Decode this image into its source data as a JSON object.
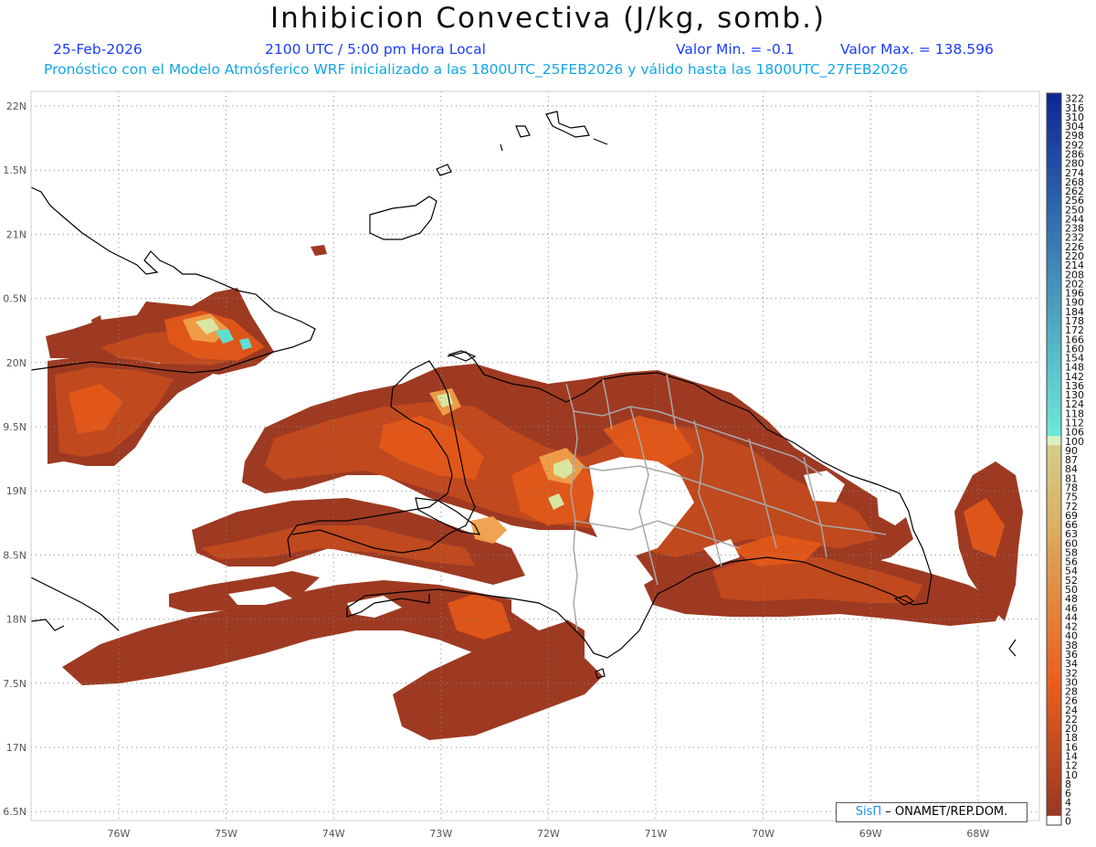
{
  "header": {
    "title": "Inhibicion Convectiva (J/kg, somb.)",
    "date": "25-Feb-2026",
    "time": "2100 UTC / 5:00 pm Hora Local",
    "min_label": "Valor Min. = -0.1",
    "max_label": "Valor Max. = 138.596",
    "forecast_note": "Pronóstico con el Modelo Atmósferico WRF inicializado a las 1800UTC_25FEB2026 y válido hasta las  1800UTC_27FEB2026"
  },
  "map": {
    "lat_labels": [
      "22N",
      "1.5N",
      "21N",
      "0.5N",
      "20N",
      "9.5N",
      "19N",
      "8.5N",
      "18N",
      "7.5N",
      "17N",
      "6.5N"
    ],
    "lon_labels": [
      "76W",
      "75W",
      "74W",
      "73W",
      "72W",
      "71W",
      "70W",
      "69W",
      "68W"
    ],
    "field_colors": {
      "dark": "#9e3a22",
      "mid": "#c24a1e",
      "orange": "#e4591a",
      "light": "#f0a04a",
      "pale": "#d8e6a0",
      "cyan": "#5fe0d0"
    }
  },
  "colorbar": {
    "labels": [
      "322",
      "316",
      "310",
      "304",
      "298",
      "292",
      "286",
      "280",
      "274",
      "268",
      "262",
      "256",
      "250",
      "244",
      "238",
      "232",
      "226",
      "220",
      "214",
      "208",
      "202",
      "196",
      "190",
      "184",
      "178",
      "172",
      "166",
      "160",
      "154",
      "148",
      "142",
      "136",
      "130",
      "124",
      "118",
      "112",
      "106",
      "100",
      "90",
      "87",
      "84",
      "81",
      "78",
      "75",
      "72",
      "69",
      "66",
      "63",
      "60",
      "58",
      "56",
      "54",
      "52",
      "50",
      "48",
      "46",
      "44",
      "42",
      "40",
      "38",
      "36",
      "34",
      "32",
      "30",
      "28",
      "26",
      "24",
      "22",
      "20",
      "18",
      "16",
      "14",
      "12",
      "10",
      "8",
      "6",
      "4",
      "2",
      "0"
    ]
  },
  "credit": {
    "brand": "SisΠ",
    "text": "– ONAMET/REP.DOM."
  }
}
